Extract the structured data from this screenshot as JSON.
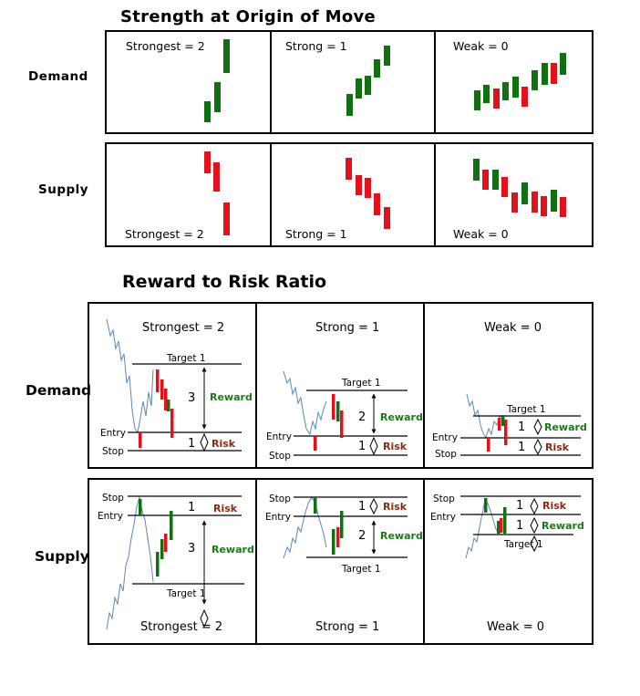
{
  "section1": {
    "title": "Strength at Origin of Move",
    "rows": [
      "Demand",
      "Supply"
    ],
    "levels": [
      "Strongest = 2",
      "Strong = 1",
      "Weak = 0"
    ]
  },
  "section2": {
    "title": "Reward to Risk Ratio",
    "rows": [
      "Demand",
      "Supply"
    ],
    "levels": [
      "Strongest = 2",
      "Strong = 1",
      "Weak = 0"
    ],
    "labels": {
      "target": "Target 1",
      "entry": "Entry",
      "stop": "Stop",
      "reward": "Reward",
      "risk": "Risk"
    },
    "ratios": {
      "strongest_reward": "3",
      "strongest_risk": "1",
      "strong_reward": "2",
      "strong_risk": "1",
      "weak_reward": "1",
      "weak_risk": "1"
    }
  },
  "colors": {
    "green": "#127012",
    "red": "#e3121a",
    "reward_text": "#1a7a1a",
    "risk_text": "#8b2a10",
    "price_line": "#5d86b8"
  }
}
